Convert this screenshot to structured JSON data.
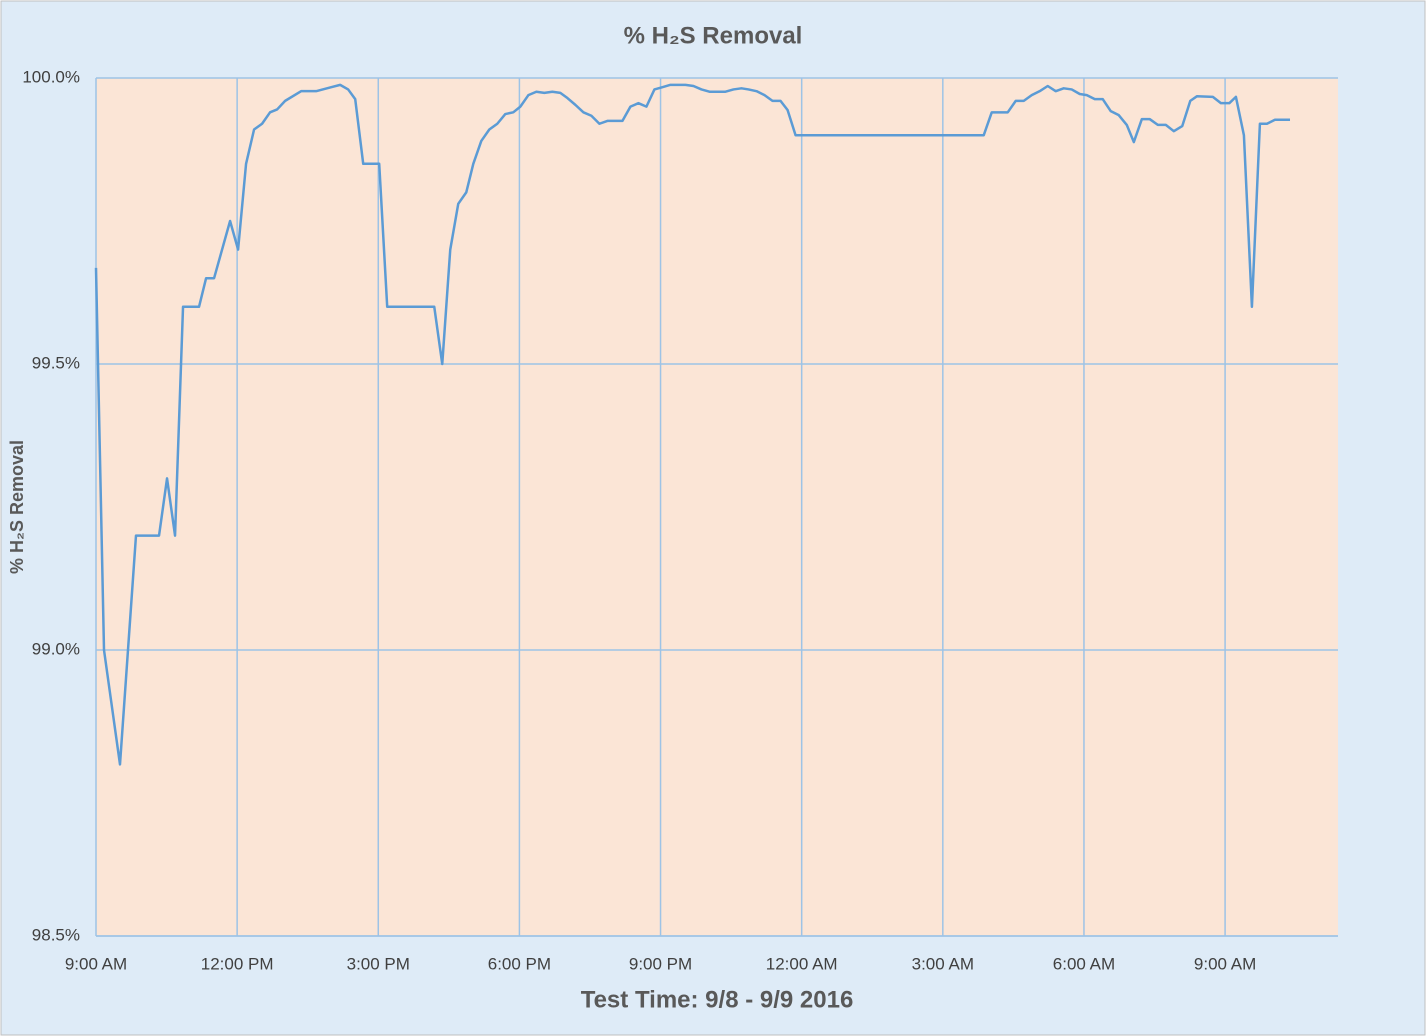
{
  "chart_data": {
    "type": "line",
    "title": "% H₂S Removal",
    "x_label": "Test Time: 9/8 - 9/9 2016",
    "y_label": "% H₂S Removal",
    "color": "#5b9bd5",
    "grid": true,
    "xlim": [
      9,
      35.4
    ],
    "xticks": [
      {
        "value": 9,
        "label": "9:00 AM"
      },
      {
        "value": 12,
        "label": "12:00 PM"
      },
      {
        "value": 15,
        "label": "3:00 PM"
      },
      {
        "value": 18,
        "label": "6:00 PM"
      },
      {
        "value": 21,
        "label": "9:00 PM"
      },
      {
        "value": 24,
        "label": "12:00 AM"
      },
      {
        "value": 27,
        "label": "3:00 AM"
      },
      {
        "value": 30,
        "label": "6:00 AM"
      },
      {
        "value": 33,
        "label": "9:00 AM"
      }
    ],
    "ylim": [
      98.5,
      100
    ],
    "yticks": [
      {
        "value": 98.5,
        "label": "98.5%"
      },
      {
        "value": 99,
        "label": "99.0%"
      },
      {
        "value": 99.5,
        "label": "99.5%"
      },
      {
        "value": 100,
        "label": "100.0%"
      }
    ],
    "x": [
      9.0,
      9.17,
      9.51,
      9.85,
      10.34,
      10.51,
      10.68,
      10.85,
      11.19,
      11.34,
      11.51,
      11.85,
      12.02,
      12.19,
      12.36,
      12.53,
      12.7,
      12.85,
      13.02,
      13.36,
      13.68,
      14.0,
      14.19,
      14.36,
      14.51,
      14.68,
      15.02,
      15.19,
      16.19,
      16.36,
      16.53,
      16.7,
      16.87,
      17.02,
      17.19,
      17.36,
      17.53,
      17.7,
      17.87,
      18.02,
      18.19,
      18.36,
      18.53,
      18.7,
      18.87,
      19.02,
      19.19,
      19.36,
      19.53,
      19.7,
      19.87,
      20.19,
      20.36,
      20.53,
      20.7,
      20.87,
      21.04,
      21.21,
      21.53,
      21.7,
      21.87,
      22.04,
      22.38,
      22.55,
      22.72,
      22.87,
      23.04,
      23.21,
      23.38,
      23.55,
      23.7,
      23.87,
      27.87,
      28.04,
      28.38,
      28.55,
      28.72,
      28.89,
      29.06,
      29.23,
      29.4,
      29.57,
      29.74,
      29.91,
      30.06,
      30.23,
      30.4,
      30.57,
      30.74,
      30.91,
      31.06,
      31.23,
      31.4,
      31.57,
      31.74,
      31.91,
      32.09,
      32.26,
      32.4,
      32.74,
      32.91,
      33.09,
      33.23,
      33.4,
      33.57,
      33.74,
      33.89,
      34.06,
      34.38
    ],
    "values": [
      99.668,
      99.0,
      98.8,
      99.2,
      99.2,
      99.3,
      99.2,
      99.6,
      99.6,
      99.65,
      99.65,
      99.75,
      99.7,
      99.85,
      99.91,
      99.92,
      99.94,
      99.945,
      99.96,
      99.977,
      99.977,
      99.984,
      99.988,
      99.98,
      99.963,
      99.85,
      99.85,
      99.6,
      99.6,
      99.5,
      99.7,
      99.78,
      99.8,
      99.85,
      99.89,
      99.91,
      99.92,
      99.937,
      99.94,
      99.95,
      99.97,
      99.976,
      99.974,
      99.976,
      99.974,
      99.965,
      99.953,
      99.94,
      99.934,
      99.92,
      99.925,
      99.925,
      99.95,
      99.956,
      99.95,
      99.98,
      99.984,
      99.988,
      99.988,
      99.986,
      99.98,
      99.976,
      99.976,
      99.98,
      99.982,
      99.98,
      99.977,
      99.97,
      99.96,
      99.96,
      99.944,
      99.9,
      99.9,
      99.94,
      99.94,
      99.96,
      99.96,
      99.97,
      99.977,
      99.986,
      99.977,
      99.982,
      99.98,
      99.972,
      99.97,
      99.963,
      99.963,
      99.942,
      99.935,
      99.918,
      99.888,
      99.928,
      99.928,
      99.918,
      99.918,
      99.907,
      99.916,
      99.96,
      99.968,
      99.967,
      99.956,
      99.956,
      99.967,
      99.9,
      99.6,
      99.92,
      99.92,
      99.927,
      99.927
    ]
  }
}
